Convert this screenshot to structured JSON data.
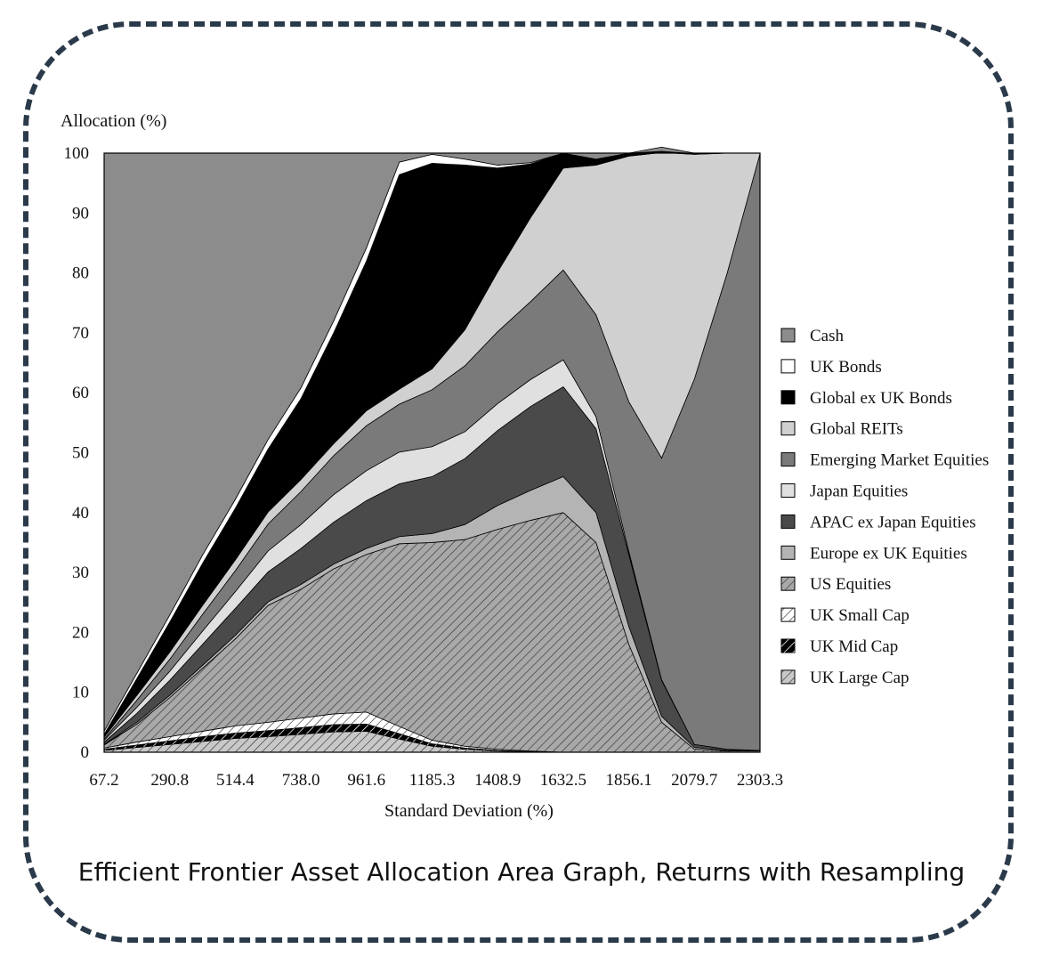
{
  "caption": "Efficient Frontier Asset Allocation Area Graph, Returns with Resampling",
  "chart_data": {
    "type": "area",
    "stacked": true,
    "title": "",
    "ylabel": "Allocation (%)",
    "xlabel": "Standard Deviation (%)",
    "ylim": [
      0,
      100
    ],
    "y_ticks": [
      0,
      10,
      20,
      30,
      40,
      50,
      60,
      70,
      80,
      90,
      100
    ],
    "x_ticks": [
      "67.2",
      "290.8",
      "514.4",
      "738.0",
      "961.6",
      "1185.3",
      "1408.9",
      "1632.5",
      "1856.1",
      "2079.7",
      "2303.3"
    ],
    "x": [
      67.2,
      179.0,
      290.8,
      402.6,
      514.4,
      626.2,
      738.0,
      849.8,
      961.6,
      1073.5,
      1185.3,
      1297.1,
      1408.9,
      1520.7,
      1632.5,
      1744.3,
      1856.1,
      1967.9,
      2079.7,
      2191.5,
      2303.3
    ],
    "legend_position": "right",
    "series": [
      {
        "name": "UK Large Cap",
        "color": "#c8c8c8",
        "pattern": "hatch-dark",
        "values": [
          0.3,
          0.8,
          1.3,
          1.8,
          2.3,
          2.6,
          3.0,
          3.4,
          3.5,
          2.2,
          1.0,
          0.5,
          0.2,
          0.1,
          0,
          0,
          0,
          0,
          0,
          0,
          0
        ]
      },
      {
        "name": "UK Mid Cap",
        "color": "#000000",
        "pattern": "hatch-light",
        "values": [
          0.2,
          0.4,
          0.6,
          0.8,
          0.9,
          1.0,
          1.1,
          1.2,
          1.2,
          0.9,
          0.4,
          0.2,
          0.1,
          0,
          0,
          0,
          0,
          0,
          0,
          0,
          0
        ]
      },
      {
        "name": "UK Small Cap",
        "color": "#ffffff",
        "pattern": "hatch-dark",
        "values": [
          0.2,
          0.5,
          0.7,
          0.9,
          1.2,
          1.4,
          1.6,
          1.8,
          2.0,
          1.2,
          0.6,
          0.3,
          0.2,
          0.1,
          0,
          0,
          0,
          0,
          0,
          0,
          0
        ]
      },
      {
        "name": "US Equities",
        "color": "#a8a8a8",
        "pattern": "hatch-dark",
        "values": [
          0.5,
          3.0,
          6.5,
          10.5,
          14.5,
          19.5,
          21.5,
          24.2,
          26.3,
          30.5,
          33.0,
          34.5,
          36.7,
          38.5,
          40.0,
          35.0,
          18.0,
          5.0,
          0.5,
          0.2,
          0.2
        ]
      },
      {
        "name": "Europe ex UK Equities",
        "color": "#b4b4b4",
        "pattern": "",
        "values": [
          0.1,
          0.3,
          0.4,
          0.5,
          0.6,
          0.6,
          0.8,
          0.8,
          1.0,
          1.2,
          1.5,
          2.5,
          4.0,
          5.0,
          6.0,
          5.0,
          3.0,
          1.0,
          0.3,
          0.1,
          0.1
        ]
      },
      {
        "name": "APAC ex Japan Equities",
        "color": "#4a4a4a",
        "pattern": "",
        "values": [
          0.4,
          1.5,
          2.5,
          3.5,
          4.5,
          5.0,
          6.0,
          7.0,
          8.0,
          8.8,
          9.5,
          11.0,
          12.5,
          14.0,
          15.0,
          14.0,
          12.0,
          6.0,
          0.5,
          0.2,
          0
        ]
      },
      {
        "name": "Japan Equities",
        "color": "#e0e0e0",
        "pattern": "",
        "values": [
          0.3,
          1.0,
          1.5,
          2.2,
          2.8,
          3.5,
          4.0,
          4.6,
          5.0,
          5.3,
          5.0,
          4.5,
          4.5,
          4.5,
          4.5,
          2.0,
          0.5,
          0.1,
          0,
          0,
          0
        ]
      },
      {
        "name": "Emerging Market Equities",
        "color": "#7a7a7a",
        "pattern": "",
        "values": [
          0.2,
          1.2,
          2.0,
          2.8,
          3.5,
          4.5,
          5.5,
          6.5,
          7.5,
          8.0,
          9.5,
          11.0,
          12.0,
          13.0,
          15.0,
          17.0,
          25.0,
          37.0,
          61.0,
          79.5,
          99.6
        ]
      },
      {
        "name": "Global REITs",
        "color": "#d0d0d0",
        "pattern": "",
        "values": [
          0.3,
          0.8,
          1.2,
          1.5,
          1.8,
          2.0,
          2.0,
          2.0,
          2.5,
          2.5,
          3.5,
          6.0,
          10.0,
          14.0,
          17.0,
          25.0,
          41.0,
          51.0,
          37.5,
          20.0,
          0.1
        ]
      },
      {
        "name": "Global ex UK Bonds",
        "color": "#000000",
        "pattern": "",
        "values": [
          0.5,
          2.8,
          5.0,
          7.0,
          8.6,
          10.5,
          13.5,
          18.5,
          25.0,
          35.8,
          34.3,
          27.5,
          17.3,
          9.0,
          2.5,
          1.0,
          0.5,
          0.2,
          0.1,
          0,
          0
        ]
      },
      {
        "name": "UK Bonds",
        "color": "#ffffff",
        "pattern": "",
        "values": [
          0.5,
          0.9,
          1.2,
          1.4,
          1.5,
          1.6,
          1.8,
          2.0,
          2.2,
          2.1,
          1.5,
          1.0,
          0.5,
          0.2,
          0,
          0,
          0,
          0,
          0,
          0,
          0
        ]
      },
      {
        "name": "Cash",
        "color": "#8c8c8c",
        "pattern": "",
        "values": [
          96.5,
          86.8,
          77.1,
          67.1,
          57.8,
          47.8,
          39.2,
          28.0,
          15.8,
          1.5,
          0.2,
          1.0,
          2.0,
          1.6,
          0,
          1.0,
          0,
          0.7,
          0.1,
          0,
          0
        ]
      }
    ]
  }
}
